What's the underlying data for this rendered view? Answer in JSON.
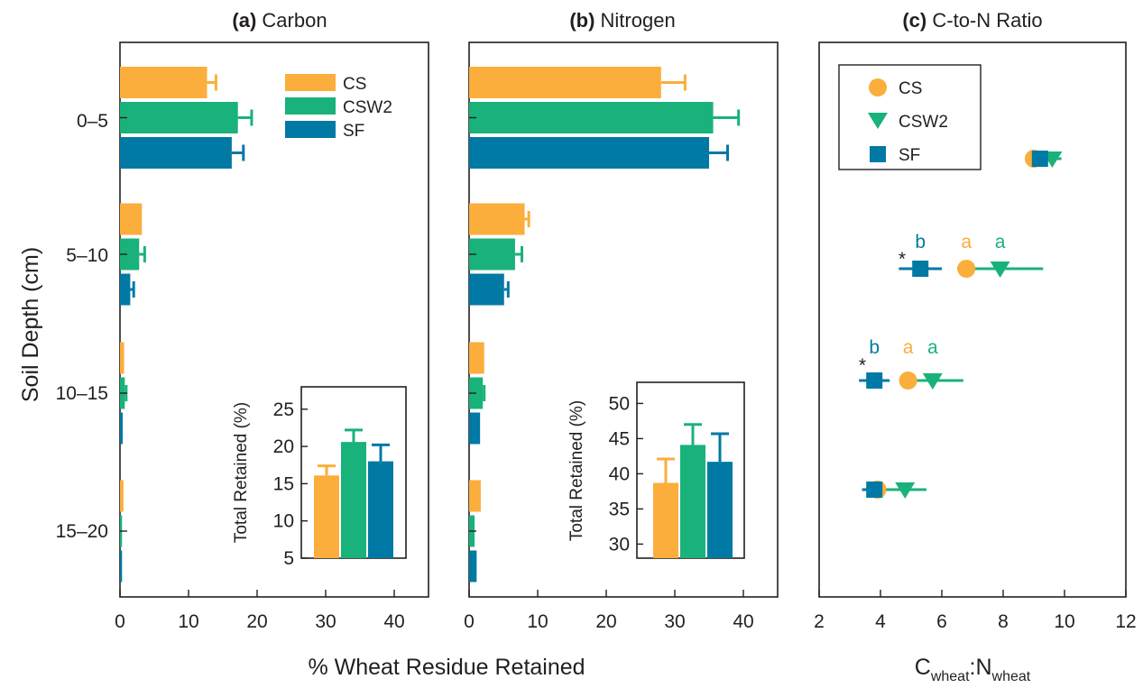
{
  "colors": {
    "CS": "#fbae3b",
    "CSW2": "#19b27a",
    "SF": "#0079a4",
    "text": "#231f20"
  },
  "ylabel": "Soil Depth (cm)",
  "shared_xlabel": "% Wheat Residue Retained",
  "panel_c_xlabel": {
    "c": "C",
    "c_sub": "wheat",
    "sep": ":",
    "n": "N",
    "n_sub": "wheat"
  },
  "panels": [
    {
      "letter": "(a)",
      "name": "Carbon"
    },
    {
      "letter": "(b)",
      "name": "Nitrogen"
    },
    {
      "letter": "(c)",
      "name": "C-to-N Ratio"
    }
  ],
  "depth_labels": [
    "0–5",
    "5–10",
    "10–15",
    "15–20"
  ],
  "legend": [
    "CS",
    "CSW2",
    "SF"
  ],
  "insets": [
    {
      "ylabel": "Total Retained (%)"
    },
    {
      "ylabel": "Total Retained (%)"
    }
  ],
  "star": "*",
  "chart_data": [
    {
      "type": "bar",
      "title": "(a) Carbon",
      "orientation": "horizontal",
      "categories": [
        "0–5",
        "5–10",
        "10–15",
        "15–20"
      ],
      "xlabel": "% Wheat Residue Retained",
      "ylabel": "Soil Depth (cm)",
      "xlim": [
        0,
        45
      ],
      "xticks": [
        0,
        10,
        20,
        30,
        40
      ],
      "legend_position": "top-right",
      "series": [
        {
          "name": "CS",
          "values": [
            12.7,
            3.2,
            0.6,
            0.5
          ],
          "errors": [
            1.3,
            0,
            0,
            0
          ]
        },
        {
          "name": "CSW2",
          "values": [
            17.2,
            2.8,
            0.7,
            0.3
          ],
          "errors": [
            2.0,
            0.8,
            0.2,
            0
          ]
        },
        {
          "name": "SF",
          "values": [
            16.3,
            1.5,
            0.4,
            0.3
          ],
          "errors": [
            1.7,
            0.5,
            0,
            0
          ]
        }
      ],
      "inset": {
        "type": "bar",
        "ylabel": "Total Retained (%)",
        "ylim": [
          5,
          28
        ],
        "yticks": [
          5,
          10,
          15,
          20,
          25
        ],
        "series": [
          {
            "name": "CS",
            "value": 16.1,
            "error": 1.3
          },
          {
            "name": "CSW2",
            "value": 20.6,
            "error": 1.6
          },
          {
            "name": "SF",
            "value": 18.0,
            "error": 2.2
          }
        ]
      }
    },
    {
      "type": "bar",
      "title": "(b) Nitrogen",
      "orientation": "horizontal",
      "categories": [
        "0–5",
        "5–10",
        "10–15",
        "15–20"
      ],
      "xlabel": "% Wheat Residue Retained",
      "xlim": [
        0,
        45
      ],
      "xticks": [
        0,
        10,
        20,
        30,
        40
      ],
      "series": [
        {
          "name": "CS",
          "values": [
            28.0,
            8.1,
            2.2,
            1.7
          ],
          "errors": [
            3.5,
            0.6,
            0,
            0
          ]
        },
        {
          "name": "CSW2",
          "values": [
            35.6,
            6.7,
            2.0,
            0.8
          ],
          "errors": [
            3.7,
            1.0,
            0.2,
            0
          ]
        },
        {
          "name": "SF",
          "values": [
            35.0,
            5.1,
            1.6,
            1.1
          ],
          "errors": [
            2.7,
            0.6,
            0,
            0
          ]
        }
      ],
      "inset": {
        "type": "bar",
        "ylabel": "Total Retained (%)",
        "ylim": [
          28,
          53
        ],
        "yticks": [
          30,
          35,
          40,
          45,
          50
        ],
        "series": [
          {
            "name": "CS",
            "value": 38.7,
            "error": 3.4
          },
          {
            "name": "CSW2",
            "value": 44.1,
            "error": 2.9
          },
          {
            "name": "SF",
            "value": 41.7,
            "error": 4.0
          }
        ]
      }
    },
    {
      "type": "scatter",
      "title": "(c) C-to-N Ratio",
      "xlabel": "Cwheat:Nwheat",
      "xlim": [
        2,
        12
      ],
      "xticks": [
        2,
        4,
        6,
        8,
        10,
        12
      ],
      "categories": [
        "0–5",
        "5–10",
        "10–15",
        "15–20"
      ],
      "legend_position": "top-left",
      "series": [
        {
          "name": "CS",
          "marker": "circle",
          "x": [
            9.0,
            6.8,
            4.9,
            3.9
          ],
          "xerr": [
            0,
            0,
            0,
            0.5
          ],
          "letters": [
            "",
            "a",
            "a",
            ""
          ]
        },
        {
          "name": "CSW2",
          "marker": "triangle-down",
          "x": [
            9.6,
            7.9,
            5.7,
            4.8
          ],
          "xerr": [
            0.3,
            1.4,
            1.0,
            0.7
          ],
          "letters": [
            "",
            "a",
            "a",
            ""
          ]
        },
        {
          "name": "SF",
          "marker": "square",
          "x": [
            9.2,
            5.3,
            3.8,
            3.8
          ],
          "xerr": [
            0.3,
            0.7,
            0.5,
            0.4
          ],
          "letters": [
            "",
            "b",
            "b",
            ""
          ]
        }
      ],
      "significance_rows": [
        "5–10",
        "10–15"
      ]
    }
  ]
}
